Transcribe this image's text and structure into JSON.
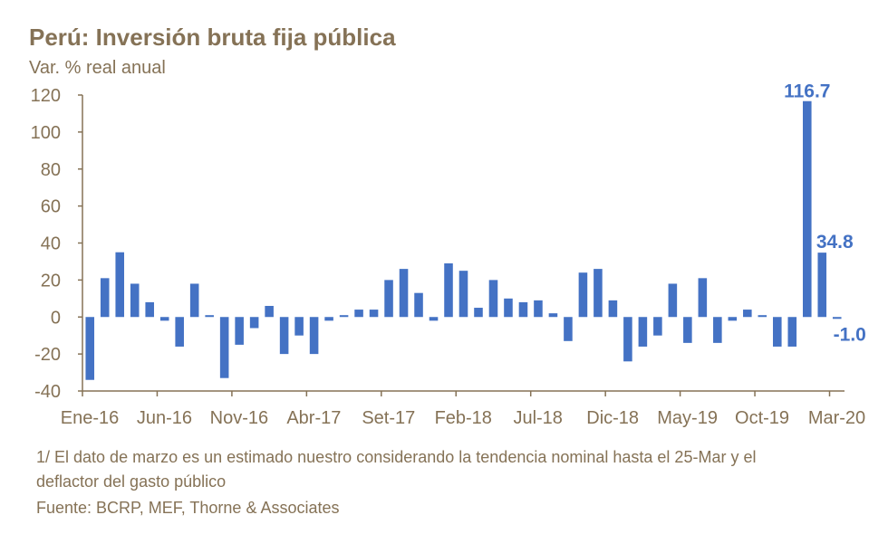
{
  "colors": {
    "bar": "#4472C4",
    "text": "#857256",
    "axis": "#857256",
    "label": "#4472C4"
  },
  "chart_data": {
    "type": "bar",
    "title": "Perú: Inversión bruta fija pública",
    "subtitle": "Var. % real anual",
    "xlabel": "",
    "ylabel": "Var. % real anual",
    "ylim": [
      -40,
      120
    ],
    "yticks": [
      -40,
      -20,
      0,
      20,
      40,
      60,
      80,
      100,
      120
    ],
    "grid": false,
    "tick_labels": [
      "Ene-16",
      "Jun-16",
      "Nov-16",
      "Abr-17",
      "Set-17",
      "Feb-18",
      "Jul-18",
      "Dic-18",
      "May-19",
      "Oct-19",
      "Mar-20"
    ],
    "tick_every": 5,
    "values": [
      -34,
      21,
      35,
      18,
      8,
      -2,
      -16,
      18,
      1,
      -33,
      -15,
      -6,
      6,
      -20,
      -10,
      -20,
      -2,
      1,
      4,
      4,
      20,
      26,
      13,
      -2,
      29,
      25,
      5,
      20,
      10,
      8,
      9,
      2,
      -13,
      24,
      26,
      9,
      -24,
      -16,
      -10,
      18,
      -14,
      21,
      -14,
      -2,
      4,
      1,
      -16,
      -16,
      116.7,
      34.8,
      -1.0
    ],
    "data_labels": [
      {
        "index": 48,
        "text": "116.7"
      },
      {
        "index": 49,
        "text": "34.8"
      },
      {
        "index": 50,
        "text": "-1.0"
      }
    ]
  },
  "footnote": {
    "line1": "1/ El dato de marzo es un estimado nuestro considerando la tendencia nominal hasta el 25-Mar y el",
    "line2": "deflactor del gasto público",
    "source": "Fuente: BCRP, MEF, Thorne & Associates"
  }
}
